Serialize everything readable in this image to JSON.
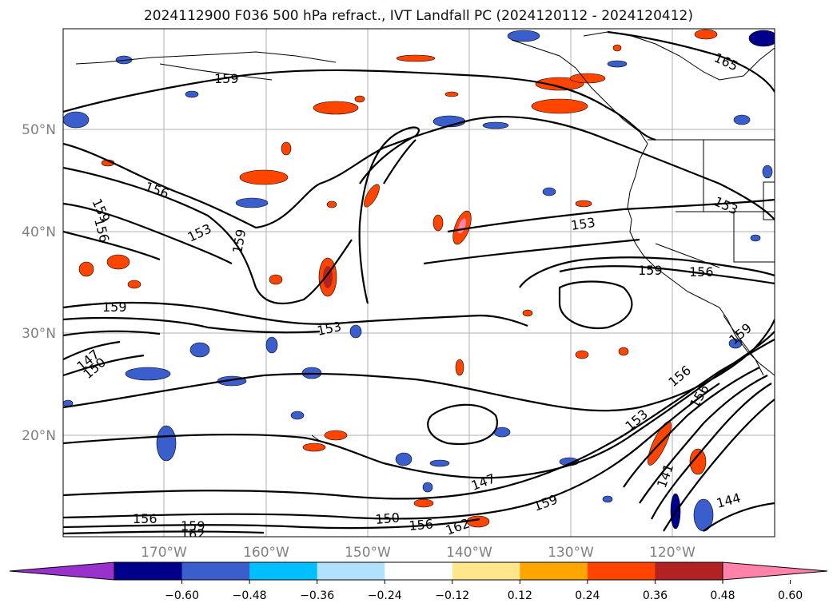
{
  "title": "2024112900 F036 500 hPa refract., IVT Landfall PC (2024120112 - 2024120412)",
  "map": {
    "lon_labels": [
      "170°W",
      "160°W",
      "150°W",
      "140°W",
      "130°W",
      "120°W"
    ],
    "lat_labels": [
      "50°N",
      "40°N",
      "30°N",
      "20°N"
    ],
    "contour_labels": [
      "159",
      "165",
      "156",
      "159",
      "156",
      "153",
      "159",
      "153",
      "159",
      "156",
      "153",
      "159",
      "147",
      "150",
      "153",
      "156",
      "153",
      "147",
      "159",
      "150",
      "156",
      "162",
      "156",
      "159",
      "162",
      "141",
      "144",
      "159",
      "156"
    ]
  },
  "colorbar": {
    "tick_labels": [
      "−0.60",
      "−0.48",
      "−0.36",
      "−0.24",
      "−0.12",
      "0.12",
      "0.24",
      "0.36",
      "0.48",
      "0.60"
    ],
    "colors": [
      "#9932cc",
      "#00008b",
      "#3a5fcd",
      "#00bfff",
      "#b0e2ff",
      "#ffffff",
      "#ffe68a",
      "#ffa500",
      "#ff4500",
      "#b22222",
      "#ff82ab"
    ]
  }
}
